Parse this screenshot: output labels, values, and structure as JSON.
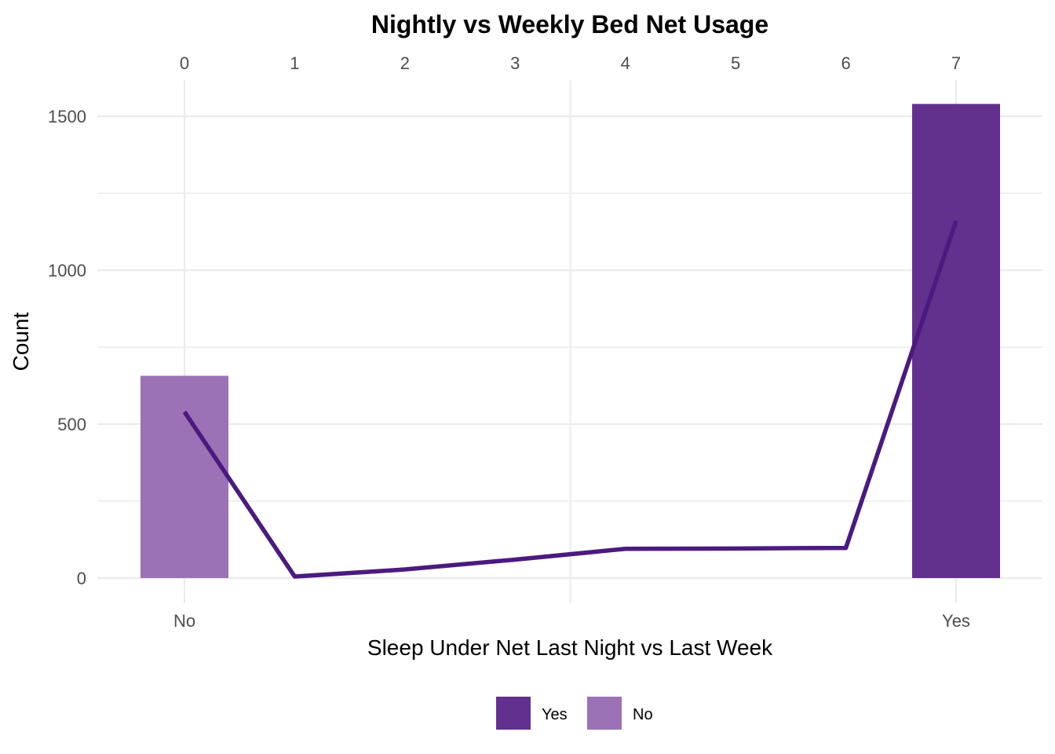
{
  "chart_data": {
    "type": "bar",
    "title": "Nightly vs Weekly Bed Net Usage",
    "xlabel": "Sleep Under Net Last Night vs Last Week",
    "ylabel": "Count",
    "ylim": [
      0,
      1500
    ],
    "y_ticks": [
      "0",
      "500",
      "1000",
      "1500"
    ],
    "grid": true,
    "legend_position": "bottom",
    "bar_layer": {
      "categories": [
        "No",
        "Yes"
      ],
      "values": [
        657,
        1540
      ],
      "colors": [
        "#9b72b5",
        "#62318e"
      ]
    },
    "line_layer": {
      "x_ticks": [
        "0",
        "1",
        "2",
        "3",
        "4",
        "5",
        "6",
        "7"
      ],
      "x": [
        0,
        1,
        2,
        3,
        4,
        5,
        6,
        7
      ],
      "values": [
        540,
        5,
        28,
        60,
        95,
        96,
        98,
        1160
      ],
      "color": "#4b1a80"
    },
    "legend": [
      {
        "label": "Yes",
        "color": "#62318e"
      },
      {
        "label": "No",
        "color": "#9b72b5"
      }
    ]
  }
}
